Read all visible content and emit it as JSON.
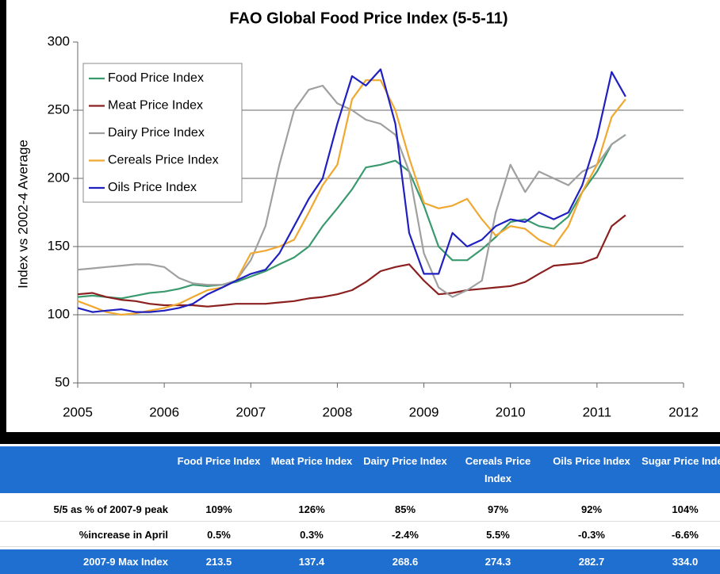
{
  "chart_data": {
    "type": "line",
    "title": "FAO Global Food Price Index (5-5-11)",
    "y_label": "Index vs 2002-4 Average",
    "x": [
      2005,
      2005.17,
      2005.33,
      2005.5,
      2005.67,
      2005.83,
      2006,
      2006.17,
      2006.33,
      2006.5,
      2006.67,
      2006.83,
      2007,
      2007.17,
      2007.33,
      2007.5,
      2007.67,
      2007.83,
      2008,
      2008.17,
      2008.33,
      2008.5,
      2008.67,
      2008.83,
      2009,
      2009.17,
      2009.33,
      2009.5,
      2009.67,
      2009.83,
      2010,
      2010.17,
      2010.33,
      2010.5,
      2010.67,
      2010.83,
      2011,
      2011.17,
      2011.33
    ],
    "xlim": [
      2005,
      2012
    ],
    "xticks": [
      2005,
      2006,
      2007,
      2008,
      2009,
      2010,
      2011,
      2012
    ],
    "ylim": [
      50,
      300
    ],
    "yticks": [
      50,
      100,
      150,
      200,
      250,
      300
    ],
    "grid": true,
    "legend": "upper-left",
    "series": [
      {
        "name": "Food Price Index",
        "color": "#3a9a6e",
        "values": [
          113,
          114,
          113,
          112,
          114,
          116,
          117,
          119,
          122,
          121,
          122,
          124,
          128,
          132,
          137,
          142,
          150,
          165,
          178,
          192,
          208,
          210,
          213,
          205,
          180,
          150,
          140,
          140,
          148,
          157,
          168,
          170,
          165,
          163,
          172,
          190,
          205,
          225,
          232
        ]
      },
      {
        "name": "Meat Price Index",
        "color": "#8b2020",
        "values": [
          115,
          116,
          113,
          111,
          110,
          108,
          107,
          107,
          107,
          106,
          107,
          108,
          108,
          108,
          109,
          110,
          112,
          113,
          115,
          118,
          124,
          132,
          135,
          137,
          125,
          115,
          116,
          118,
          119,
          120,
          121,
          124,
          130,
          136,
          137,
          138,
          142,
          165,
          173
        ]
      },
      {
        "name": "Dairy Price Index",
        "color": "#a0a0a0",
        "values": [
          133,
          134,
          135,
          136,
          137,
          137,
          135,
          127,
          123,
          122,
          122,
          125,
          140,
          165,
          210,
          250,
          265,
          268,
          255,
          250,
          243,
          240,
          232,
          205,
          145,
          120,
          113,
          118,
          125,
          175,
          210,
          190,
          205,
          200,
          195,
          205,
          210,
          225,
          232
        ]
      },
      {
        "name": "Cereals Price Index",
        "color": "#f0a830",
        "values": [
          110,
          106,
          102,
          100,
          101,
          103,
          105,
          108,
          113,
          118,
          120,
          125,
          145,
          147,
          150,
          155,
          175,
          195,
          210,
          258,
          272,
          272,
          250,
          215,
          182,
          178,
          180,
          185,
          170,
          158,
          165,
          163,
          155,
          150,
          165,
          190,
          210,
          245,
          258
        ]
      },
      {
        "name": "Oils Price Index",
        "color": "#2020c0",
        "values": [
          105,
          102,
          103,
          104,
          102,
          102,
          103,
          105,
          108,
          115,
          120,
          125,
          130,
          133,
          145,
          165,
          185,
          200,
          240,
          275,
          268,
          280,
          240,
          160,
          130,
          130,
          160,
          150,
          155,
          165,
          170,
          168,
          175,
          170,
          175,
          195,
          230,
          278,
          260
        ]
      }
    ]
  },
  "table": {
    "columns": [
      "Food Price Index",
      "Meat Price Index",
      "Dairy Price Index",
      "Cereals Price Index",
      "Oils Price Index",
      "Sugar Price Index"
    ],
    "rows": [
      {
        "label": "5/5 as % of 2007-9 peak",
        "cells": [
          "109%",
          "126%",
          "85%",
          "97%",
          "92%",
          "104%"
        ]
      },
      {
        "label": "%increase in April",
        "cells": [
          "0.5%",
          "0.3%",
          "-2.4%",
          "5.5%",
          "-0.3%",
          "-6.6%"
        ]
      },
      {
        "label": "2007-9 Max Index",
        "cells": [
          "213.5",
          "137.4",
          "268.6",
          "274.3",
          "282.7",
          "334.0"
        ]
      }
    ]
  }
}
